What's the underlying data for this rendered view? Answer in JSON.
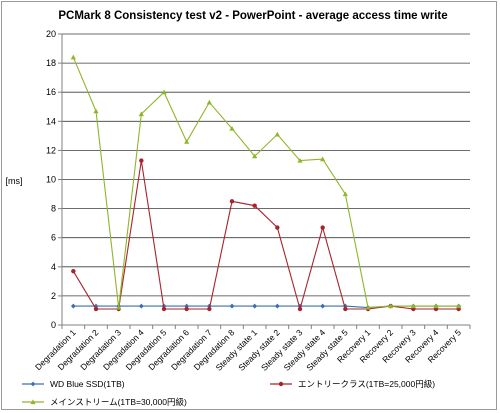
{
  "chart_data": {
    "type": "line",
    "title": "PCMark 8 Consistency test v2 - PowerPoint - average access time write",
    "ylabel": "[ms]",
    "xlabel": "",
    "ylim": [
      0,
      20
    ],
    "yticks": [
      0,
      2,
      4,
      6,
      8,
      10,
      12,
      14,
      16,
      18,
      20
    ],
    "grid": true,
    "legend_position": "bottom",
    "categories": [
      "Degradation 1",
      "Degradation 2",
      "Degradation 3",
      "Degradation 4",
      "Degradation 5",
      "Degradation 6",
      "Degradation 7",
      "Degradation 8",
      "Steady state 1",
      "Steady state 2",
      "Steady state 3",
      "Steady state 4",
      "Steady state 5",
      "Recovery 1",
      "Recovery 2",
      "Recovery 3",
      "Recovery 4",
      "Recovery 5"
    ],
    "series": [
      {
        "name": "WD Blue SSD(1TB)",
        "color": "#3a6fb0",
        "marker": "diamond",
        "values": [
          1.3,
          1.3,
          1.3,
          1.3,
          1.3,
          1.3,
          1.3,
          1.3,
          1.3,
          1.3,
          1.3,
          1.3,
          1.3,
          1.2,
          1.3,
          1.3,
          1.3,
          1.3
        ]
      },
      {
        "name": "エントリークラス(1TB=25,000円級)",
        "color": "#a8232a",
        "marker": "circle",
        "values": [
          3.7,
          1.1,
          1.1,
          11.3,
          1.1,
          1.1,
          1.1,
          8.5,
          8.2,
          6.7,
          1.1,
          6.7,
          1.1,
          1.1,
          1.3,
          1.1,
          1.1,
          1.1
        ]
      },
      {
        "name": "メインストリーム(1TB=30,000円級)",
        "color": "#8fb629",
        "marker": "triangle",
        "values": [
          18.4,
          14.7,
          1.2,
          14.5,
          16.0,
          12.6,
          15.3,
          13.5,
          11.6,
          13.1,
          11.3,
          11.4,
          9.0,
          1.2,
          1.3,
          1.3,
          1.3,
          1.3
        ]
      }
    ]
  }
}
